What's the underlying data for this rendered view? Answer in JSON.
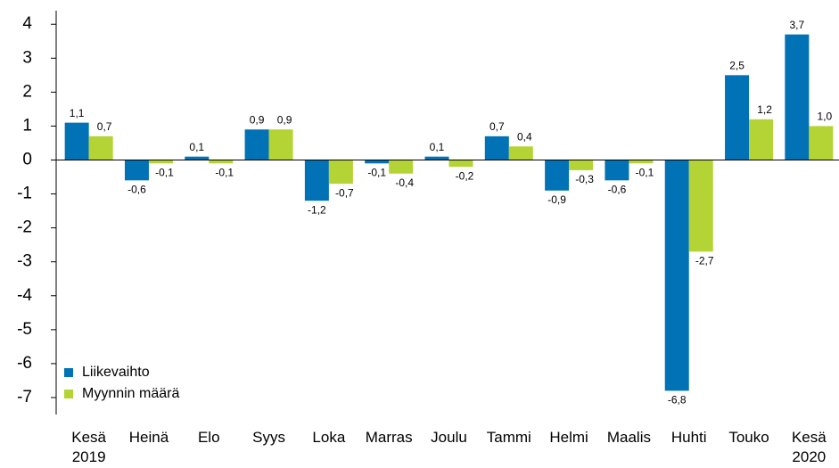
{
  "chart_data": {
    "type": "bar",
    "categories": [
      "Kesä 2019",
      "Heinä",
      "Elo",
      "Syys",
      "Loka",
      "Marras",
      "Joulu",
      "Tammi",
      "Helmi",
      "Maalis",
      "Huhti",
      "Touko",
      "Kesä 2020"
    ],
    "series": [
      {
        "name": "Liikevaihto",
        "color": "#0072b5",
        "values": [
          1.1,
          -0.6,
          0.1,
          0.9,
          -1.2,
          -0.1,
          0.1,
          0.7,
          -0.9,
          -0.6,
          -6.8,
          2.5,
          3.7
        ],
        "value_labels": [
          "1,1",
          "-0,6",
          "0,1",
          "0,9",
          "-1,2",
          "-0,1",
          "0,1",
          "0,7",
          "-0,9",
          "-0,6",
          "-6,8",
          "2,5",
          "3,7"
        ]
      },
      {
        "name": "Myynnin määrä",
        "color": "#b4d334",
        "values": [
          0.7,
          -0.1,
          -0.1,
          0.9,
          -0.7,
          -0.4,
          -0.2,
          0.4,
          -0.3,
          -0.1,
          -2.7,
          1.2,
          1.0
        ],
        "value_labels": [
          "0,7",
          "-0,1",
          "-0,1",
          "0,9",
          "-0,7",
          "-0,4",
          "-0,2",
          "0,4",
          "-0,3",
          "-0,1",
          "-2,7",
          "1,2",
          "1,0"
        ]
      }
    ],
    "ylim": [
      -7.5,
      4.4
    ],
    "yticks": [
      -7,
      -6,
      -5,
      -4,
      -3,
      -2,
      -1,
      0,
      1,
      2,
      3,
      4
    ],
    "legend": "lower left"
  }
}
